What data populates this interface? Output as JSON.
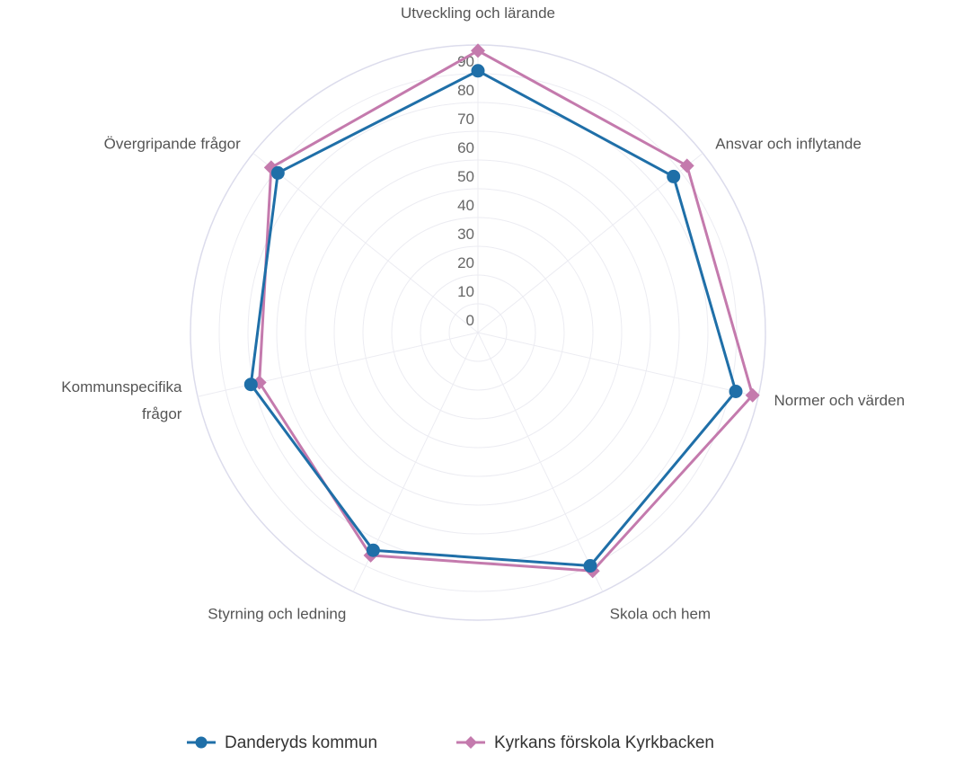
{
  "chart_data": {
    "type": "radar",
    "axes": [
      {
        "label_lines": [
          "Utveckling och lärande"
        ]
      },
      {
        "label_lines": [
          "Ansvar och inflytande"
        ]
      },
      {
        "label_lines": [
          "Normer och värden"
        ]
      },
      {
        "label_lines": [
          "Skola och hem"
        ]
      },
      {
        "label_lines": [
          "Styrning och ledning"
        ]
      },
      {
        "label_lines": [
          "Kommunspecifika",
          "frågor"
        ]
      },
      {
        "label_lines": [
          "Övergripande frågor"
        ]
      }
    ],
    "rlim": [
      0,
      100
    ],
    "ticks": [
      0,
      10,
      20,
      30,
      40,
      50,
      60,
      70,
      80,
      90
    ],
    "grid": true,
    "legend_position": "bottom",
    "series": [
      {
        "name": "Danderyds kommun",
        "color": "#1f6fa8",
        "marker": "circle",
        "values": [
          91,
          87,
          92,
          90,
          84,
          81,
          89
        ]
      },
      {
        "name": "Kyrkans förskola Kyrkbacken",
        "color": "#c47aad",
        "marker": "diamond",
        "values": [
          98,
          93,
          98,
          92,
          86,
          78,
          92
        ]
      }
    ]
  }
}
